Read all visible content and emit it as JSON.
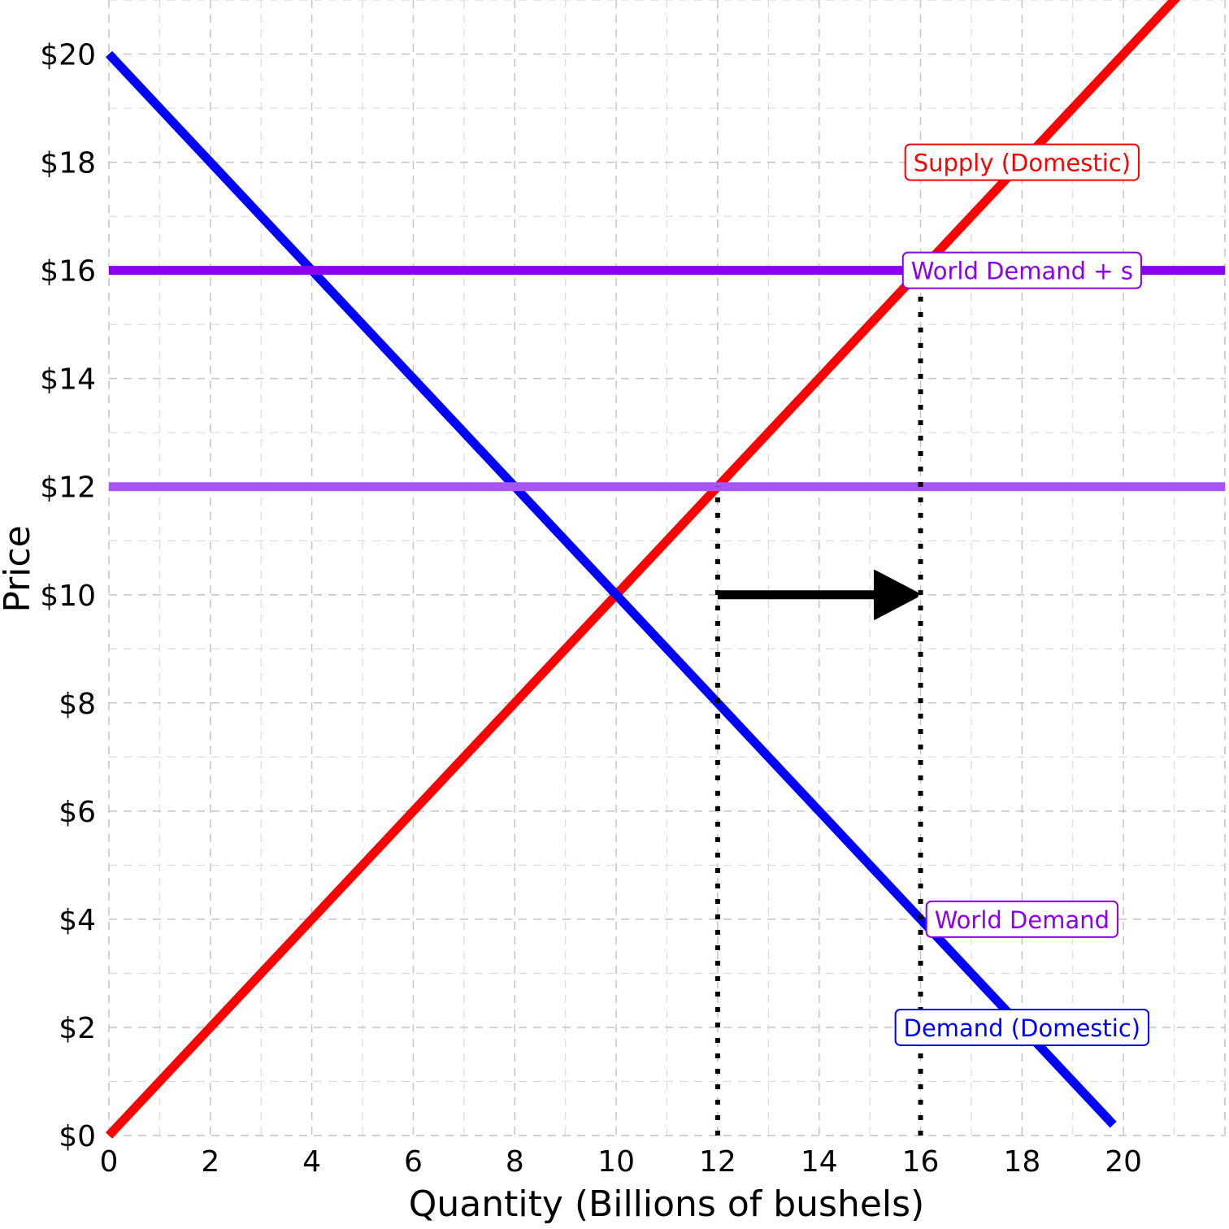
{
  "chart_data": {
    "type": "line",
    "title": "",
    "xlabel": "Quantity (Billions of bushels)",
    "ylabel": "Price",
    "xlim": [
      0,
      22
    ],
    "ylim": [
      0,
      21
    ],
    "x_ticks": [
      0,
      2,
      4,
      6,
      8,
      10,
      12,
      14,
      16,
      18,
      20
    ],
    "y_ticks": [
      0,
      2,
      4,
      6,
      8,
      10,
      12,
      14,
      16,
      18,
      20
    ],
    "x_tick_labels": [
      "0",
      "2",
      "4",
      "6",
      "8",
      "10",
      "12",
      "14",
      "16",
      "18",
      "20"
    ],
    "y_tick_labels": [
      "$0",
      "$2",
      "$4",
      "$6",
      "$8",
      "$10",
      "$12",
      "$14",
      "$16",
      "$18",
      "$20"
    ],
    "grid": true,
    "series": [
      {
        "name": "Supply (Domestic)",
        "color": "#ff0000",
        "x": [
          0,
          22
        ],
        "y": [
          0,
          22
        ]
      },
      {
        "name": "Demand (Domestic)",
        "color": "#0000ff",
        "x": [
          0,
          19.8
        ],
        "y": [
          20,
          0.2
        ]
      },
      {
        "name": "World Demand + s",
        "color": "#8b00ee",
        "x": [
          0,
          22
        ],
        "y": [
          16,
          16
        ]
      },
      {
        "name": "World Demand",
        "color": "#a855f7",
        "x": [
          0,
          22
        ],
        "y": [
          12,
          12
        ]
      }
    ],
    "reference_lines": [
      {
        "x": 12,
        "y_from": 0,
        "y_to": 12,
        "style": "dotted",
        "color": "#000000"
      },
      {
        "x": 16,
        "y_from": 0,
        "y_to": 16,
        "style": "dotted",
        "color": "#000000"
      }
    ],
    "arrow": {
      "x_from": 12,
      "x_to": 16,
      "y": 10,
      "color": "#000000"
    },
    "labels": [
      {
        "text": "Supply (Domestic)",
        "x": 18,
        "y": 18,
        "color": "#ff0000"
      },
      {
        "text": "World Demand + s",
        "x": 18,
        "y": 16,
        "color": "#8b00ee"
      },
      {
        "text": "World Demand",
        "x": 18,
        "y": 4,
        "color": "#8b00ee"
      },
      {
        "text": "Demand (Domestic)",
        "x": 18,
        "y": 2,
        "color": "#0000ff"
      }
    ]
  }
}
